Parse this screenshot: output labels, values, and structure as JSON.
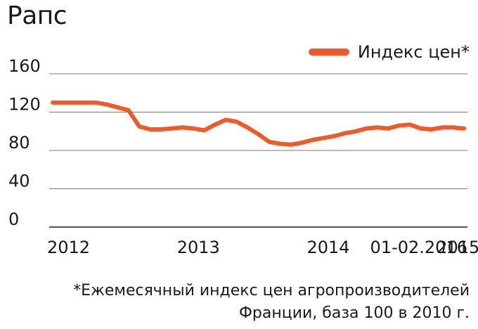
{
  "title": "Рапс",
  "legend": {
    "label": "Индекс цен*"
  },
  "footnote": {
    "line1": "*Ежемесячный индекс цен агропроизводителей",
    "line2": "Франции, база 100 в 2010 г."
  },
  "colors": {
    "series": "#f05a28",
    "grid": "#777777",
    "axis": "#1a1a1a"
  },
  "chart_data": {
    "type": "line",
    "title": "Рапс",
    "xlabel": "",
    "ylabel": "",
    "ylim": [
      0,
      160
    ],
    "yticks": [
      "0",
      "40",
      "80",
      "120",
      "160"
    ],
    "ytick_values": [
      0,
      40,
      80,
      120,
      160
    ],
    "xtick_labels": [
      "2012",
      "2013",
      "2014",
      "2015",
      "01-02.2016"
    ],
    "xtick_index": [
      0,
      12,
      24,
      36,
      48
    ],
    "grid": true,
    "legend_position": "top-right",
    "series": [
      {
        "name": "Индекс цен*",
        "values": [
          130,
          130,
          130,
          130,
          130,
          128,
          125,
          122,
          105,
          102,
          102,
          103,
          104,
          103,
          101,
          107,
          112,
          110,
          104,
          97,
          89,
          87,
          86,
          88,
          91,
          93,
          95,
          98,
          100,
          103,
          104,
          103,
          106,
          107,
          103,
          102,
          104,
          104,
          103
        ]
      }
    ]
  }
}
